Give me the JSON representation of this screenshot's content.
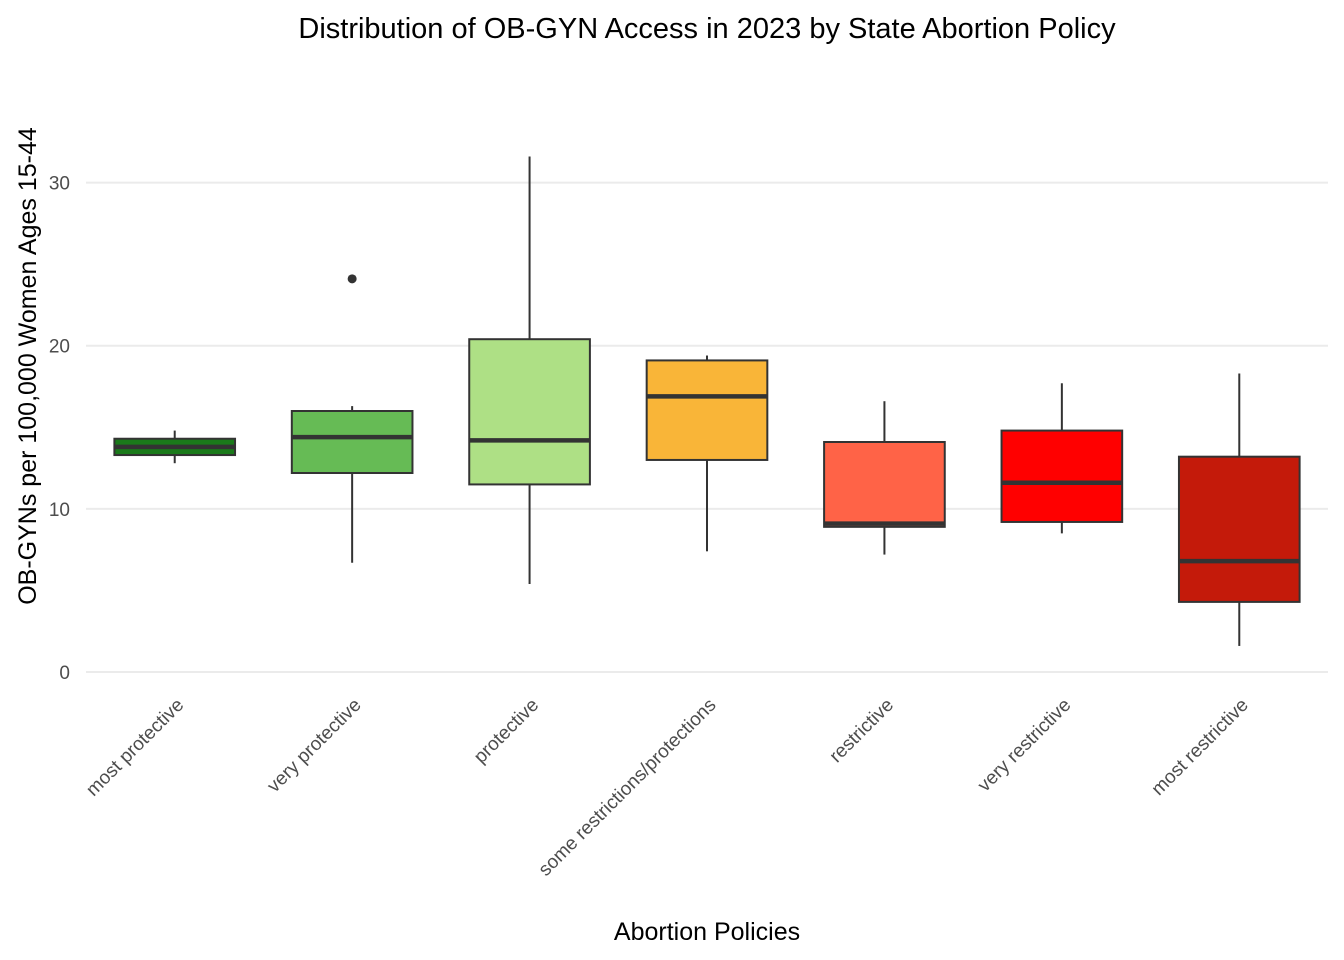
{
  "chart_data": {
    "type": "box",
    "title": "Distribution of OB-GYN Access in 2023 by State Abortion Policy",
    "xlabel": "Abortion Policies",
    "ylabel": "OB-GYNs per 100,000 Women Ages 15-44",
    "ylim": [
      -1.1,
      36.9
    ],
    "yticks": [
      0,
      10,
      20,
      30
    ],
    "grid": true,
    "legend": "none",
    "categories": [
      "most protective",
      "very protective",
      "protective",
      "some restrictions/protections",
      "restrictive",
      "very restrictive",
      "most restrictive"
    ],
    "boxes": [
      {
        "category": "most protective",
        "min": 12.8,
        "q1": 13.3,
        "median": 13.8,
        "q3": 14.3,
        "max": 14.8,
        "outliers": [],
        "color": "#1a7a1a"
      },
      {
        "category": "very protective",
        "min": 6.7,
        "q1": 12.2,
        "median": 14.4,
        "q3": 16.0,
        "max": 16.3,
        "outliers": [
          24.1
        ],
        "color": "#66bb55"
      },
      {
        "category": "protective",
        "min": 5.4,
        "q1": 11.5,
        "median": 14.2,
        "q3": 20.4,
        "max": 31.6,
        "outliers": [],
        "color": "#aee085"
      },
      {
        "category": "some restrictions/protections",
        "min": 7.4,
        "q1": 13.0,
        "median": 16.9,
        "q3": 19.1,
        "max": 19.4,
        "outliers": [],
        "color": "#f9b538"
      },
      {
        "category": "restrictive",
        "min": 7.2,
        "q1": 8.9,
        "median": 9.1,
        "q3": 14.1,
        "max": 16.6,
        "outliers": [],
        "color": "#ff6347"
      },
      {
        "category": "very restrictive",
        "min": 8.5,
        "q1": 9.2,
        "median": 11.6,
        "q3": 14.8,
        "max": 17.7,
        "outliers": [],
        "color": "#ff0000"
      },
      {
        "category": "most restrictive",
        "min": 1.6,
        "q1": 4.3,
        "median": 6.8,
        "q3": 13.2,
        "max": 18.3,
        "outliers": [],
        "color": "#c41a0a"
      }
    ]
  }
}
